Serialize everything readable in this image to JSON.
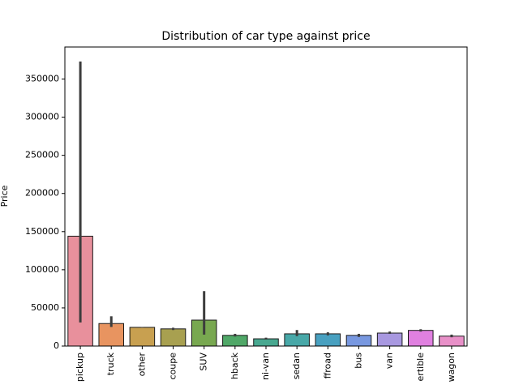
{
  "chart_data": {
    "type": "bar",
    "title": "Distribution of car type against price",
    "xlabel": "",
    "ylabel": "Price",
    "ylim": [
      0,
      392000
    ],
    "yticks": [
      0,
      50000,
      100000,
      150000,
      200000,
      250000,
      300000,
      350000
    ],
    "grid": false,
    "categories": [
      "pickup",
      "truck",
      "other",
      "coupe",
      "SUV",
      "hatchback",
      "mini-van",
      "sedan",
      "offroad",
      "bus",
      "van",
      "convertible",
      "wagon"
    ],
    "tick_labels_visible": [
      "pickup",
      "truck",
      "other",
      "coupe",
      "SUV",
      "hback",
      "ni-van",
      "sedan",
      "ffroad",
      "bus",
      "van",
      "ertible",
      "wagon"
    ],
    "values": [
      144000,
      29500,
      24500,
      22500,
      34000,
      14000,
      9500,
      16000,
      16000,
      14000,
      17000,
      20500,
      13000
    ],
    "error_bars": [
      [
        31000,
        373000
      ],
      [
        25000,
        39000
      ],
      [
        24000,
        25000
      ],
      [
        21000,
        24000
      ],
      [
        15000,
        72000
      ],
      [
        12500,
        16000
      ],
      [
        8500,
        11000
      ],
      [
        13000,
        21000
      ],
      [
        14000,
        18000
      ],
      [
        12000,
        16000
      ],
      [
        16000,
        19000
      ],
      [
        19000,
        22000
      ],
      [
        11500,
        15000
      ]
    ],
    "colors": [
      "#e8909c",
      "#e89460",
      "#c8a050",
      "#a8a050",
      "#78a850",
      "#50a868",
      "#48a890",
      "#48a8a8",
      "#48a0c0",
      "#7898e0",
      "#a898e0",
      "#e080e0",
      "#e890c8"
    ]
  }
}
